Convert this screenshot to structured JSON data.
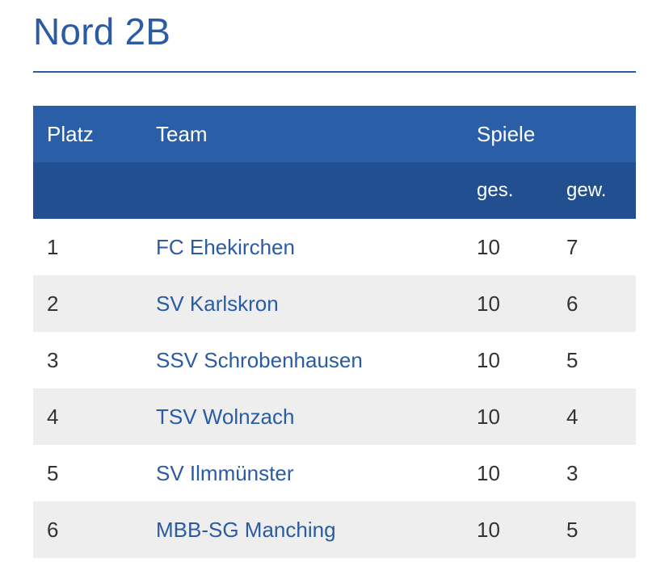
{
  "page": {
    "title": "Nord 2B"
  },
  "table": {
    "header": {
      "platz": "Platz",
      "team": "Team",
      "spiele": "Spiele",
      "ges": "ges.",
      "gew": "gew."
    },
    "rows": [
      {
        "platz": "1",
        "team": "FC Ehekirchen",
        "ges": "10",
        "gew": "7"
      },
      {
        "platz": "2",
        "team": "SV Karlskron",
        "ges": "10",
        "gew": "6"
      },
      {
        "platz": "3",
        "team": "SSV Schrobenhausen",
        "ges": "10",
        "gew": "5"
      },
      {
        "platz": "4",
        "team": "TSV Wolnzach",
        "ges": "10",
        "gew": "4"
      },
      {
        "platz": "5",
        "team": "SV Ilmmünster",
        "ges": "10",
        "gew": "3"
      },
      {
        "platz": "6",
        "team": "MBB-SG Manching",
        "ges": "10",
        "gew": "5"
      }
    ]
  },
  "colors": {
    "accent": "#2a5ba3",
    "header_primary": "#2a5ea6",
    "header_secondary": "#214f8f",
    "row_alt": "#eeeeee"
  }
}
